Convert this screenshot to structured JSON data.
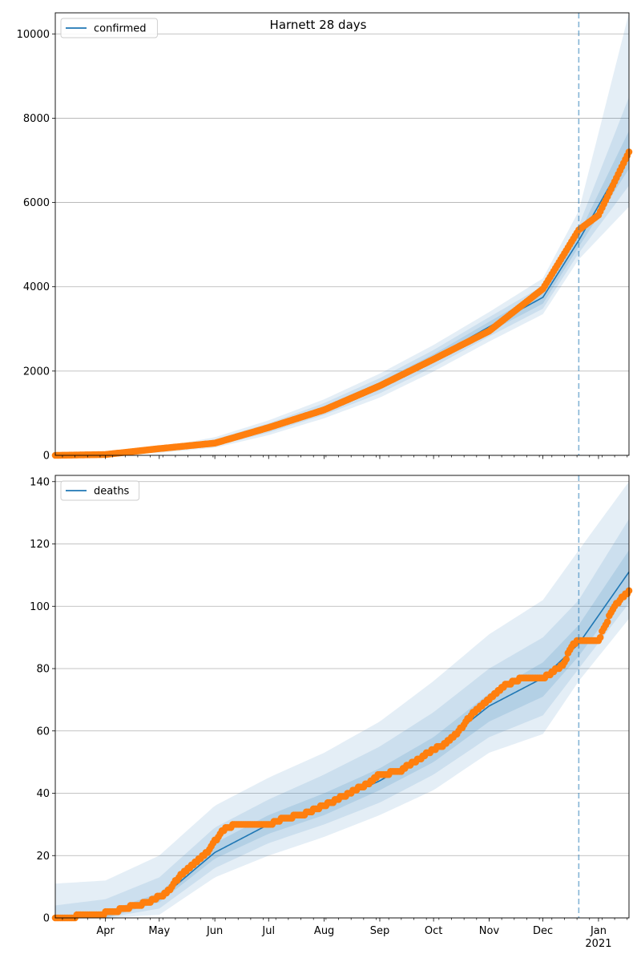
{
  "colors": {
    "line": "#1f77b4",
    "points": "#ff7f0e",
    "band": "#1f77b4",
    "grid": "#b0b0b0",
    "vline": "#1f77b4"
  },
  "chart_data": [
    {
      "type": "line",
      "title": "Harnett 28 days",
      "xlabel": "",
      "ylabel": "",
      "xlim": [
        "2020-03-04",
        "2021-01-18"
      ],
      "ylim": [
        0,
        10500
      ],
      "yticks": [
        0,
        2000,
        4000,
        6000,
        8000,
        10000
      ],
      "xticks": [],
      "grid": "horizontal",
      "legend": {
        "position": "top-left",
        "entries": [
          "confirmed"
        ]
      },
      "forecast_start": "2020-12-21",
      "series": [
        {
          "name": "confirmed",
          "kind": "model-line",
          "points": [
            [
              "2020-03-04",
              0
            ],
            [
              "2020-04-01",
              20
            ],
            [
              "2020-05-01",
              120
            ],
            [
              "2020-06-01",
              300
            ],
            [
              "2020-07-01",
              650
            ],
            [
              "2020-08-01",
              1100
            ],
            [
              "2020-09-01",
              1650
            ],
            [
              "2020-10-01",
              2300
            ],
            [
              "2020-11-01",
              3050
            ],
            [
              "2020-12-01",
              3750
            ],
            [
              "2020-12-21",
              5100
            ],
            [
              "2021-01-18",
              7200
            ]
          ]
        },
        {
          "name": "observed",
          "kind": "markers",
          "points": [
            [
              "2020-03-04",
              0
            ],
            [
              "2020-04-01",
              20
            ],
            [
              "2020-05-01",
              160
            ],
            [
              "2020-06-01",
              290
            ],
            [
              "2020-07-01",
              660
            ],
            [
              "2020-08-01",
              1080
            ],
            [
              "2020-09-01",
              1650
            ],
            [
              "2020-10-01",
              2280
            ],
            [
              "2020-11-01",
              2950
            ],
            [
              "2020-12-01",
              3950
            ],
            [
              "2020-12-21",
              5350
            ],
            [
              "2021-01-01",
              5700
            ],
            [
              "2021-01-18",
              7200
            ]
          ]
        }
      ],
      "bands": [
        {
          "level": "inner",
          "lower": [
            [
              "2020-03-04",
              0
            ],
            [
              "2020-04-01",
              15
            ],
            [
              "2020-05-01",
              100
            ],
            [
              "2020-06-01",
              260
            ],
            [
              "2020-07-01",
              600
            ],
            [
              "2020-08-01",
              1030
            ],
            [
              "2020-09-01",
              1560
            ],
            [
              "2020-10-01",
              2200
            ],
            [
              "2020-11-01",
              2930
            ],
            [
              "2020-12-01",
              3600
            ],
            [
              "2020-12-21",
              4950
            ],
            [
              "2021-01-18",
              6800
            ]
          ],
          "upper": [
            [
              "2020-03-04",
              0
            ],
            [
              "2020-04-01",
              25
            ],
            [
              "2020-05-01",
              140
            ],
            [
              "2020-06-01",
              340
            ],
            [
              "2020-07-01",
              700
            ],
            [
              "2020-08-01",
              1170
            ],
            [
              "2020-09-01",
              1740
            ],
            [
              "2020-10-01",
              2400
            ],
            [
              "2020-11-01",
              3170
            ],
            [
              "2020-12-01",
              3900
            ],
            [
              "2020-12-21",
              5250
            ],
            [
              "2021-01-18",
              7700
            ]
          ]
        },
        {
          "level": "middle",
          "lower": [
            [
              "2020-03-04",
              0
            ],
            [
              "2020-04-01",
              10
            ],
            [
              "2020-05-01",
              80
            ],
            [
              "2020-06-01",
              220
            ],
            [
              "2020-07-01",
              540
            ],
            [
              "2020-08-01",
              960
            ],
            [
              "2020-09-01",
              1470
            ],
            [
              "2020-10-01",
              2100
            ],
            [
              "2020-11-01",
              2820
            ],
            [
              "2020-12-01",
              3480
            ],
            [
              "2020-12-21",
              4800
            ],
            [
              "2021-01-18",
              6400
            ]
          ],
          "upper": [
            [
              "2020-03-04",
              0
            ],
            [
              "2020-04-01",
              30
            ],
            [
              "2020-05-01",
              160
            ],
            [
              "2020-06-01",
              380
            ],
            [
              "2020-07-01",
              760
            ],
            [
              "2020-08-01",
              1240
            ],
            [
              "2020-09-01",
              1830
            ],
            [
              "2020-10-01",
              2500
            ],
            [
              "2020-11-01",
              3280
            ],
            [
              "2020-12-01",
              4020
            ],
            [
              "2020-12-21",
              5450
            ],
            [
              "2021-01-18",
              8500
            ]
          ]
        },
        {
          "level": "outer",
          "lower": [
            [
              "2020-03-04",
              0
            ],
            [
              "2020-04-01",
              5
            ],
            [
              "2020-05-01",
              60
            ],
            [
              "2020-06-01",
              180
            ],
            [
              "2020-07-01",
              480
            ],
            [
              "2020-08-01",
              880
            ],
            [
              "2020-09-01",
              1370
            ],
            [
              "2020-10-01",
              1990
            ],
            [
              "2020-11-01",
              2700
            ],
            [
              "2020-12-01",
              3350
            ],
            [
              "2020-12-21",
              4650
            ],
            [
              "2021-01-18",
              5900
            ]
          ],
          "upper": [
            [
              "2020-03-04",
              0
            ],
            [
              "2020-04-01",
              40
            ],
            [
              "2020-05-01",
              190
            ],
            [
              "2020-06-01",
              430
            ],
            [
              "2020-07-01",
              830
            ],
            [
              "2020-08-01",
              1330
            ],
            [
              "2020-09-01",
              1940
            ],
            [
              "2020-10-01",
              2620
            ],
            [
              "2020-11-01",
              3400
            ],
            [
              "2020-12-01",
              4200
            ],
            [
              "2020-12-21",
              5800
            ],
            [
              "2021-01-18",
              10500
            ]
          ]
        }
      ]
    },
    {
      "type": "line",
      "title": "",
      "xlabel": "",
      "ylabel": "",
      "xlim": [
        "2020-03-04",
        "2021-01-18"
      ],
      "ylim": [
        0,
        142
      ],
      "yticks": [
        0,
        20,
        40,
        60,
        80,
        100,
        120,
        140
      ],
      "xticks": [
        {
          "date": "2020-04-01",
          "label": "Apr"
        },
        {
          "date": "2020-05-01",
          "label": "May"
        },
        {
          "date": "2020-06-01",
          "label": "Jun"
        },
        {
          "date": "2020-07-01",
          "label": "Jul"
        },
        {
          "date": "2020-08-01",
          "label": "Aug"
        },
        {
          "date": "2020-09-01",
          "label": "Sep"
        },
        {
          "date": "2020-10-01",
          "label": "Oct"
        },
        {
          "date": "2020-11-01",
          "label": "Nov"
        },
        {
          "date": "2020-12-01",
          "label": "Dec"
        },
        {
          "date": "2021-01-01",
          "label": "Jan",
          "label2": "2021"
        }
      ],
      "grid": "horizontal",
      "legend": {
        "position": "top-left",
        "entries": [
          "deaths"
        ]
      },
      "forecast_start": "2020-12-21",
      "series": [
        {
          "name": "deaths",
          "kind": "model-line",
          "points": [
            [
              "2020-03-04",
              0
            ],
            [
              "2020-04-01",
              1
            ],
            [
              "2020-05-01",
              6
            ],
            [
              "2020-06-01",
              21
            ],
            [
              "2020-07-01",
              30
            ],
            [
              "2020-08-01",
              36
            ],
            [
              "2020-09-01",
              44
            ],
            [
              "2020-10-01",
              54
            ],
            [
              "2020-11-01",
              68
            ],
            [
              "2020-12-01",
              77
            ],
            [
              "2020-12-21",
              88
            ],
            [
              "2021-01-18",
              111
            ]
          ]
        },
        {
          "name": "observed",
          "kind": "markers",
          "points": [
            [
              "2020-03-04",
              0
            ],
            [
              "2020-03-27",
              1
            ],
            [
              "2020-04-05",
              2
            ],
            [
              "2020-04-25",
              5
            ],
            [
              "2020-05-05",
              8
            ],
            [
              "2020-05-12",
              13
            ],
            [
              "2020-05-20",
              17
            ],
            [
              "2020-05-28",
              21
            ],
            [
              "2020-06-05",
              28
            ],
            [
              "2020-06-12",
              30
            ],
            [
              "2020-07-01",
              30
            ],
            [
              "2020-07-10",
              32
            ],
            [
              "2020-07-20",
              33
            ],
            [
              "2020-07-28",
              35
            ],
            [
              "2020-08-05",
              37
            ],
            [
              "2020-08-15",
              40
            ],
            [
              "2020-08-25",
              43
            ],
            [
              "2020-09-01",
              46
            ],
            [
              "2020-09-12",
              47
            ],
            [
              "2020-09-20",
              50
            ],
            [
              "2020-10-01",
              54
            ],
            [
              "2020-10-08",
              56
            ],
            [
              "2020-10-15",
              60
            ],
            [
              "2020-10-25",
              67
            ],
            [
              "2020-11-01",
              70
            ],
            [
              "2020-11-08",
              74
            ],
            [
              "2020-11-20",
              77
            ],
            [
              "2020-12-01",
              77
            ],
            [
              "2020-12-12",
              81
            ],
            [
              "2020-12-18",
              88
            ],
            [
              "2020-12-21",
              89
            ],
            [
              "2021-01-01",
              89
            ],
            [
              "2021-01-04",
              93
            ],
            [
              "2021-01-10",
              100
            ],
            [
              "2021-01-18",
              105
            ]
          ]
        }
      ],
      "bands": [
        {
          "level": "inner",
          "lower": [
            [
              "2020-03-04",
              0
            ],
            [
              "2020-04-01",
              0
            ],
            [
              "2020-05-01",
              5
            ],
            [
              "2020-06-01",
              19
            ],
            [
              "2020-07-01",
              27
            ],
            [
              "2020-08-01",
              33
            ],
            [
              "2020-09-01",
              41
            ],
            [
              "2020-10-01",
              50
            ],
            [
              "2020-11-01",
              63
            ],
            [
              "2020-12-01",
              71
            ],
            [
              "2020-12-21",
              84
            ],
            [
              "2021-01-18",
              106
            ]
          ],
          "upper": [
            [
              "2020-03-04",
              0
            ],
            [
              "2020-04-01",
              2
            ],
            [
              "2020-05-01",
              8
            ],
            [
              "2020-06-01",
              24
            ],
            [
              "2020-07-01",
              33
            ],
            [
              "2020-08-01",
              40
            ],
            [
              "2020-09-01",
              48
            ],
            [
              "2020-10-01",
              58
            ],
            [
              "2020-11-01",
              72
            ],
            [
              "2020-12-01",
              82
            ],
            [
              "2020-12-21",
              94
            ],
            [
              "2021-01-18",
              118
            ]
          ]
        },
        {
          "level": "middle",
          "lower": [
            [
              "2020-03-04",
              0
            ],
            [
              "2020-04-01",
              0
            ],
            [
              "2020-05-01",
              3
            ],
            [
              "2020-06-01",
              16
            ],
            [
              "2020-07-01",
              24
            ],
            [
              "2020-08-01",
              30
            ],
            [
              "2020-09-01",
              37
            ],
            [
              "2020-10-01",
              46
            ],
            [
              "2020-11-01",
              58
            ],
            [
              "2020-12-01",
              65
            ],
            [
              "2020-12-21",
              80
            ],
            [
              "2021-01-18",
              101
            ]
          ],
          "upper": [
            [
              "2020-03-04",
              4
            ],
            [
              "2020-04-01",
              6
            ],
            [
              "2020-05-01",
              13
            ],
            [
              "2020-06-01",
              29
            ],
            [
              "2020-07-01",
              38
            ],
            [
              "2020-08-01",
              46
            ],
            [
              "2020-09-01",
              55
            ],
            [
              "2020-10-01",
              66
            ],
            [
              "2020-11-01",
              80
            ],
            [
              "2020-12-01",
              90
            ],
            [
              "2020-12-21",
              102
            ],
            [
              "2021-01-18",
              128
            ]
          ]
        },
        {
          "level": "outer",
          "lower": [
            [
              "2020-03-04",
              0
            ],
            [
              "2020-04-01",
              0
            ],
            [
              "2020-05-01",
              1
            ],
            [
              "2020-06-01",
              13
            ],
            [
              "2020-07-01",
              20
            ],
            [
              "2020-08-01",
              26
            ],
            [
              "2020-09-01",
              33
            ],
            [
              "2020-10-01",
              41
            ],
            [
              "2020-11-01",
              53
            ],
            [
              "2020-12-01",
              59
            ],
            [
              "2020-12-21",
              76
            ],
            [
              "2021-01-18",
              96
            ]
          ],
          "upper": [
            [
              "2020-03-04",
              11
            ],
            [
              "2020-04-01",
              12
            ],
            [
              "2020-05-01",
              20
            ],
            [
              "2020-06-01",
              36
            ],
            [
              "2020-07-01",
              45
            ],
            [
              "2020-08-01",
              53
            ],
            [
              "2020-09-01",
              63
            ],
            [
              "2020-10-01",
              76
            ],
            [
              "2020-11-01",
              91
            ],
            [
              "2020-12-01",
              102
            ],
            [
              "2020-12-21",
              118
            ],
            [
              "2021-01-18",
              140
            ]
          ]
        }
      ]
    }
  ]
}
